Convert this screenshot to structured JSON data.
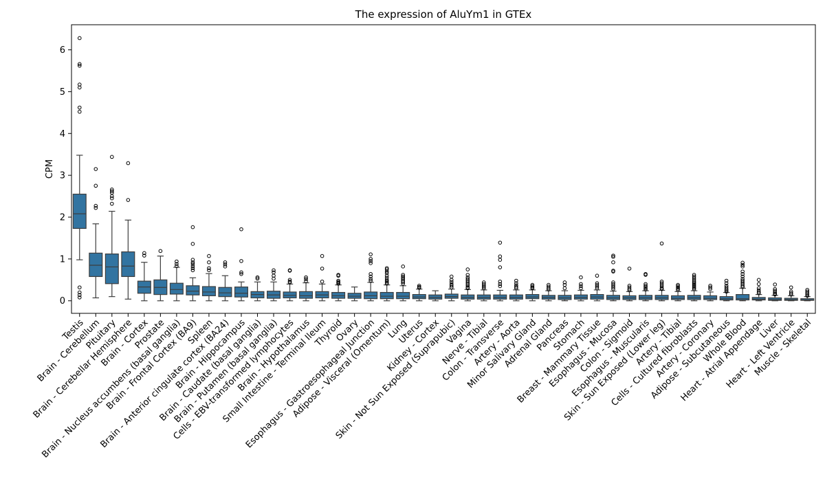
{
  "chart_data": {
    "type": "box",
    "title": "The expression of AluYm1 in GTEx",
    "xlabel": "",
    "ylabel": "CPM",
    "ylim": [
      -0.3,
      6.6
    ],
    "yticks": [
      0,
      1,
      2,
      3,
      4,
      5,
      6
    ],
    "grid": false,
    "box_color": "#3274a1",
    "categories": [
      "Testis",
      "Brain - Cerebellum",
      "Pituitary",
      "Brain - Cerebellar Hemisphere",
      "Brain - Cortex",
      "Prostate",
      "Brain - Nucleus accumbens (basal ganglia)",
      "Brain - Frontal Cortex (BA9)",
      "Spleen",
      "Brain - Anterior cingulate cortex (BA24)",
      "Brain - Hippocampus",
      "Brain - Caudate (basal ganglia)",
      "Brain - Putamen (basal ganglia)",
      "Cells - EBV-transformed lymphocytes",
      "Brain - Hypothalamus",
      "Small Intestine - Terminal Ileum",
      "Thyroid",
      "Ovary",
      "Esophagus - Gastroesophageal Junction",
      "Adipose - Visceral (Omentum)",
      "Lung",
      "Uterus",
      "Kidney - Cortex",
      "Skin - Not Sun Exposed (Suprapubic)",
      "Vagina",
      "Nerve - Tibial",
      "Colon - Transverse",
      "Artery - Aorta",
      "Minor Salivary Gland",
      "Adrenal Gland",
      "Pancreas",
      "Stomach",
      "Breast - Mammary Tissue",
      "Esophagus - Mucosa",
      "Colon - Sigmoid",
      "Esophagus - Muscularis",
      "Skin - Sun Exposed (Lower leg)",
      "Artery - Tibial",
      "Cells - Cultured fibroblasts",
      "Artery - Coronary",
      "Adipose - Subcutaneous",
      "Whole Blood",
      "Heart - Atrial Appendage",
      "Liver",
      "Heart - Left Ventricle",
      "Muscle - Skeletal"
    ],
    "boxes": [
      {
        "whisker_low": 0.98,
        "q1": 1.73,
        "median": 2.08,
        "q3": 2.55,
        "whisker_high": 3.48,
        "outliers": [
          6.28,
          5.66,
          5.62,
          5.17,
          5.1,
          4.62,
          4.52,
          0.32,
          0.2,
          0.14,
          0.08
        ]
      },
      {
        "whisker_low": 0.07,
        "q1": 0.58,
        "median": 0.85,
        "q3": 1.14,
        "whisker_high": 1.84,
        "outliers": [
          3.15,
          2.75,
          2.27,
          2.22
        ]
      },
      {
        "whisker_low": 0.1,
        "q1": 0.41,
        "median": 0.81,
        "q3": 1.12,
        "whisker_high": 2.14,
        "outliers": [
          3.44,
          2.66,
          2.62,
          2.58,
          2.5,
          2.45,
          2.32
        ]
      },
      {
        "whisker_low": 0.04,
        "q1": 0.58,
        "median": 0.83,
        "q3": 1.17,
        "whisker_high": 1.93,
        "outliers": [
          3.29,
          2.41
        ]
      },
      {
        "whisker_low": 0.0,
        "q1": 0.18,
        "median": 0.33,
        "q3": 0.47,
        "whisker_high": 0.92,
        "outliers": [
          1.14,
          1.08
        ]
      },
      {
        "whisker_low": 0.0,
        "q1": 0.15,
        "median": 0.32,
        "q3": 0.5,
        "whisker_high": 1.07,
        "outliers": [
          1.19
        ]
      },
      {
        "whisker_low": 0.0,
        "q1": 0.16,
        "median": 0.27,
        "q3": 0.42,
        "whisker_high": 0.8,
        "outliers": [
          0.94,
          0.88,
          0.83
        ]
      },
      {
        "whisker_low": 0.0,
        "q1": 0.14,
        "median": 0.23,
        "q3": 0.36,
        "whisker_high": 0.55,
        "outliers": [
          1.76,
          1.36,
          0.98,
          0.92,
          0.88,
          0.83,
          0.78,
          0.73
        ]
      },
      {
        "whisker_low": 0.0,
        "q1": 0.12,
        "median": 0.21,
        "q3": 0.34,
        "whisker_high": 0.65,
        "outliers": [
          1.07,
          0.92,
          0.78,
          0.73
        ]
      },
      {
        "whisker_low": 0.0,
        "q1": 0.1,
        "median": 0.19,
        "q3": 0.32,
        "whisker_high": 0.6,
        "outliers": [
          0.92,
          0.87,
          0.82
        ]
      },
      {
        "whisker_low": 0.0,
        "q1": 0.09,
        "median": 0.18,
        "q3": 0.33,
        "whisker_high": 0.45,
        "outliers": [
          1.71,
          0.95,
          0.68,
          0.64
        ]
      },
      {
        "whisker_low": 0.0,
        "q1": 0.07,
        "median": 0.15,
        "q3": 0.22,
        "whisker_high": 0.45,
        "outliers": [
          0.56,
          0.53
        ]
      },
      {
        "whisker_low": 0.0,
        "q1": 0.06,
        "median": 0.14,
        "q3": 0.23,
        "whisker_high": 0.45,
        "outliers": [
          0.73,
          0.68,
          0.6,
          0.53
        ]
      },
      {
        "whisker_low": 0.0,
        "q1": 0.07,
        "median": 0.13,
        "q3": 0.21,
        "whisker_high": 0.4,
        "outliers": [
          0.73,
          0.72,
          0.5,
          0.46,
          0.44
        ]
      },
      {
        "whisker_low": 0.0,
        "q1": 0.06,
        "median": 0.12,
        "q3": 0.22,
        "whisker_high": 0.43,
        "outliers": [
          0.56,
          0.52,
          0.47
        ]
      },
      {
        "whisker_low": 0.0,
        "q1": 0.07,
        "median": 0.14,
        "q3": 0.22,
        "whisker_high": 0.4,
        "outliers": [
          1.07,
          0.77,
          0.46
        ]
      },
      {
        "whisker_low": 0.0,
        "q1": 0.06,
        "median": 0.12,
        "q3": 0.2,
        "whisker_high": 0.38,
        "outliers": [
          0.62,
          0.6,
          0.48,
          0.45,
          0.43,
          0.41
        ]
      },
      {
        "whisker_low": 0.0,
        "q1": 0.06,
        "median": 0.11,
        "q3": 0.18,
        "whisker_high": 0.33,
        "outliers": []
      },
      {
        "whisker_low": 0.0,
        "q1": 0.05,
        "median": 0.12,
        "q3": 0.21,
        "whisker_high": 0.44,
        "outliers": [
          1.11,
          1.0,
          0.95,
          0.9,
          0.64,
          0.58,
          0.52,
          0.48
        ]
      },
      {
        "whisker_low": 0.0,
        "q1": 0.05,
        "median": 0.11,
        "q3": 0.2,
        "whisker_high": 0.38,
        "outliers": [
          0.78,
          0.75,
          0.7,
          0.66,
          0.6,
          0.55,
          0.5,
          0.47,
          0.44,
          0.41
        ]
      },
      {
        "whisker_low": 0.0,
        "q1": 0.05,
        "median": 0.11,
        "q3": 0.2,
        "whisker_high": 0.36,
        "outliers": [
          0.82,
          0.62,
          0.58,
          0.55,
          0.52,
          0.48,
          0.45,
          0.41
        ]
      },
      {
        "whisker_low": 0.0,
        "q1": 0.05,
        "median": 0.09,
        "q3": 0.15,
        "whisker_high": 0.28,
        "outliers": [
          0.36,
          0.33,
          0.31
        ]
      },
      {
        "whisker_low": 0.0,
        "q1": 0.04,
        "median": 0.08,
        "q3": 0.14,
        "whisker_high": 0.24,
        "outliers": []
      },
      {
        "whisker_low": 0.0,
        "q1": 0.06,
        "median": 0.1,
        "q3": 0.16,
        "whisker_high": 0.28,
        "outliers": [
          0.58,
          0.5,
          0.45,
          0.4,
          0.36,
          0.32
        ]
      },
      {
        "whisker_low": 0.0,
        "q1": 0.04,
        "median": 0.08,
        "q3": 0.14,
        "whisker_high": 0.27,
        "outliers": [
          0.75,
          0.62,
          0.56,
          0.52,
          0.48,
          0.44,
          0.4,
          0.36,
          0.32,
          0.3
        ]
      },
      {
        "whisker_low": 0.0,
        "q1": 0.04,
        "median": 0.08,
        "q3": 0.14,
        "whisker_high": 0.26,
        "outliers": [
          0.44,
          0.4,
          0.36,
          0.33,
          0.3
        ]
      },
      {
        "whisker_low": 0.0,
        "q1": 0.04,
        "median": 0.08,
        "q3": 0.14,
        "whisker_high": 0.25,
        "outliers": [
          1.39,
          1.06,
          0.98,
          0.8,
          0.46,
          0.4,
          0.35
        ]
      },
      {
        "whisker_low": 0.0,
        "q1": 0.04,
        "median": 0.08,
        "q3": 0.14,
        "whisker_high": 0.26,
        "outliers": [
          0.48,
          0.42,
          0.37,
          0.33,
          0.3
        ]
      },
      {
        "whisker_low": 0.0,
        "q1": 0.05,
        "median": 0.09,
        "q3": 0.15,
        "whisker_high": 0.26,
        "outliers": [
          0.38,
          0.35,
          0.32,
          0.3
        ]
      },
      {
        "whisker_low": 0.0,
        "q1": 0.04,
        "median": 0.08,
        "q3": 0.13,
        "whisker_high": 0.24,
        "outliers": [
          0.38,
          0.34,
          0.3,
          0.27
        ]
      },
      {
        "whisker_low": 0.0,
        "q1": 0.03,
        "median": 0.07,
        "q3": 0.13,
        "whisker_high": 0.24,
        "outliers": [
          0.44,
          0.38,
          0.3
        ]
      },
      {
        "whisker_low": 0.0,
        "q1": 0.04,
        "median": 0.08,
        "q3": 0.14,
        "whisker_high": 0.25,
        "outliers": [
          0.56,
          0.4,
          0.35,
          0.3
        ]
      },
      {
        "whisker_low": 0.0,
        "q1": 0.04,
        "median": 0.09,
        "q3": 0.15,
        "whisker_high": 0.26,
        "outliers": [
          0.6,
          0.42,
          0.38,
          0.34,
          0.3
        ]
      },
      {
        "whisker_low": 0.0,
        "q1": 0.03,
        "median": 0.07,
        "q3": 0.13,
        "whisker_high": 0.23,
        "outliers": [
          1.08,
          1.05,
          0.92,
          0.72,
          0.7,
          0.44,
          0.4,
          0.36,
          0.32,
          0.28
        ]
      },
      {
        "whisker_low": 0.0,
        "q1": 0.03,
        "median": 0.07,
        "q3": 0.12,
        "whisker_high": 0.22,
        "outliers": [
          0.77,
          0.36,
          0.32,
          0.28,
          0.25
        ]
      },
      {
        "whisker_low": 0.0,
        "q1": 0.03,
        "median": 0.07,
        "q3": 0.13,
        "whisker_high": 0.24,
        "outliers": [
          0.64,
          0.62,
          0.4,
          0.36,
          0.33,
          0.3,
          0.27
        ]
      },
      {
        "whisker_low": 0.0,
        "q1": 0.03,
        "median": 0.07,
        "q3": 0.13,
        "whisker_high": 0.25,
        "outliers": [
          1.37,
          0.46,
          0.42,
          0.38,
          0.34,
          0.3,
          0.28
        ]
      },
      {
        "whisker_low": 0.0,
        "q1": 0.03,
        "median": 0.06,
        "q3": 0.12,
        "whisker_high": 0.22,
        "outliers": [
          0.38,
          0.35,
          0.32,
          0.29,
          0.26
        ]
      },
      {
        "whisker_low": 0.0,
        "q1": 0.03,
        "median": 0.07,
        "q3": 0.13,
        "whisker_high": 0.24,
        "outliers": [
          0.62,
          0.58,
          0.54,
          0.5,
          0.46,
          0.43,
          0.4,
          0.37,
          0.34,
          0.31,
          0.28
        ]
      },
      {
        "whisker_low": 0.0,
        "q1": 0.03,
        "median": 0.06,
        "q3": 0.12,
        "whisker_high": 0.21,
        "outliers": [
          0.36,
          0.32,
          0.28
        ]
      },
      {
        "whisker_low": 0.0,
        "q1": 0.02,
        "median": 0.05,
        "q3": 0.1,
        "whisker_high": 0.2,
        "outliers": [
          0.48,
          0.42,
          0.36,
          0.32,
          0.28,
          0.25,
          0.22
        ]
      },
      {
        "whisker_low": 0.0,
        "q1": 0.02,
        "median": 0.05,
        "q3": 0.15,
        "whisker_high": 0.3,
        "outliers": [
          0.91,
          0.86,
          0.82,
          0.7,
          0.64,
          0.58,
          0.52,
          0.48,
          0.44,
          0.4,
          0.36,
          0.33
        ]
      },
      {
        "whisker_low": 0.0,
        "q1": 0.02,
        "median": 0.04,
        "q3": 0.08,
        "whisker_high": 0.15,
        "outliers": [
          0.5,
          0.4,
          0.3,
          0.25,
          0.21,
          0.18
        ]
      },
      {
        "whisker_low": 0.0,
        "q1": 0.01,
        "median": 0.03,
        "q3": 0.07,
        "whisker_high": 0.13,
        "outliers": [
          0.39,
          0.28,
          0.24,
          0.2,
          0.17,
          0.15
        ]
      },
      {
        "whisker_low": 0.0,
        "q1": 0.01,
        "median": 0.03,
        "q3": 0.06,
        "whisker_high": 0.12,
        "outliers": [
          0.32,
          0.22,
          0.18,
          0.15
        ]
      },
      {
        "whisker_low": 0.0,
        "q1": 0.01,
        "median": 0.02,
        "q3": 0.05,
        "whisker_high": 0.1,
        "outliers": [
          0.26,
          0.22,
          0.18,
          0.15,
          0.12
        ]
      }
    ]
  }
}
